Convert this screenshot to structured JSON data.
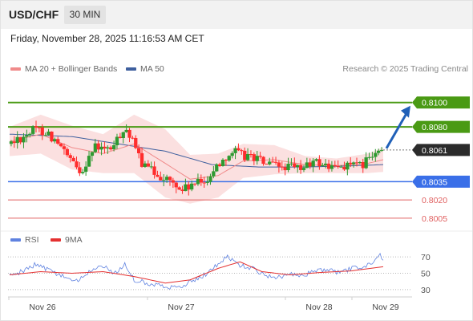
{
  "header": {
    "symbol": "USD/CHF",
    "timeframe": "30 MIN",
    "datetime": "Friday, November 28, 2025 11:16:53 AM CET"
  },
  "legend": {
    "ma20": "MA 20 + Bollinger Bands",
    "ma50": "MA 50",
    "credit": "Research © 2025 Trading Central"
  },
  "rsi_legend": {
    "rsi": "RSI",
    "ma": "9MA"
  },
  "colors": {
    "up": "#2f9a31",
    "down": "#ff2e2e",
    "green_level": "#4a9a14",
    "blue_level": "#3a6fe8",
    "red_level": "#e06060",
    "ma20": "#f08a8a",
    "ma50": "#3e5f9e",
    "band_fill": "#fbe0e0",
    "rsi": "#5f82e0",
    "rsi_ma": "#e43030",
    "arrow": "#2060b8",
    "current": "#2b2b2b"
  },
  "chart_data": [
    {
      "type": "candlestick",
      "title": "USD/CHF",
      "timeframe": "30 MIN",
      "ylim": [
        0.7997,
        0.8113
      ],
      "x_ticks": [
        "Nov 26",
        "Nov 27",
        "Nov 28",
        "Nov 29"
      ],
      "levels": [
        {
          "label": "0.8100",
          "value": 0.81,
          "kind": "resistance"
        },
        {
          "label": "0.8080",
          "value": 0.808,
          "kind": "resistance"
        },
        {
          "label": "0.8061",
          "value": 0.8061,
          "kind": "current"
        },
        {
          "label": "0.8035",
          "value": 0.8035,
          "kind": "pivot"
        },
        {
          "label": "0.8020",
          "value": 0.802,
          "kind": "support"
        },
        {
          "label": "0.8005",
          "value": 0.8005,
          "kind": "support"
        }
      ],
      "series": [
        {
          "name": "MA 20 + Bollinger Bands"
        },
        {
          "name": "MA 50"
        }
      ],
      "price_path": [
        [
          0,
          0.8066
        ],
        [
          8,
          0.8072
        ],
        [
          16,
          0.8078
        ],
        [
          24,
          0.8076
        ],
        [
          32,
          0.8064
        ],
        [
          40,
          0.805
        ],
        [
          46,
          0.8043
        ],
        [
          52,
          0.8059
        ],
        [
          56,
          0.8064
        ],
        [
          62,
          0.806
        ],
        [
          68,
          0.8066
        ],
        [
          74,
          0.8081
        ],
        [
          80,
          0.8064
        ],
        [
          86,
          0.8048
        ],
        [
          94,
          0.8042
        ],
        [
          102,
          0.8036
        ],
        [
          110,
          0.8028
        ],
        [
          118,
          0.8032
        ],
        [
          126,
          0.8036
        ],
        [
          132,
          0.8046
        ],
        [
          138,
          0.8055
        ],
        [
          144,
          0.806
        ],
        [
          150,
          0.8056
        ],
        [
          156,
          0.8056
        ],
        [
          164,
          0.805
        ],
        [
          172,
          0.8047
        ],
        [
          180,
          0.8047
        ],
        [
          186,
          0.8045
        ],
        [
          190,
          0.8048
        ],
        [
          196,
          0.8051
        ],
        [
          202,
          0.8049
        ],
        [
          208,
          0.8046
        ],
        [
          214,
          0.8048
        ],
        [
          220,
          0.805
        ],
        [
          224,
          0.8046
        ],
        [
          230,
          0.8053
        ],
        [
          236,
          0.8058
        ],
        [
          240,
          0.8063
        ]
      ],
      "ma20_path": [
        [
          0,
          0.8068
        ],
        [
          20,
          0.8074
        ],
        [
          40,
          0.8063
        ],
        [
          60,
          0.8058
        ],
        [
          80,
          0.8066
        ],
        [
          100,
          0.805
        ],
        [
          116,
          0.8037
        ],
        [
          134,
          0.804
        ],
        [
          150,
          0.8052
        ],
        [
          170,
          0.8053
        ],
        [
          190,
          0.8049
        ],
        [
          210,
          0.8048
        ],
        [
          230,
          0.805
        ],
        [
          240,
          0.8053
        ]
      ],
      "band_width_path": [
        [
          0,
          0.0012
        ],
        [
          20,
          0.0016
        ],
        [
          40,
          0.0018
        ],
        [
          60,
          0.0016
        ],
        [
          80,
          0.0024
        ],
        [
          100,
          0.0028
        ],
        [
          116,
          0.002
        ],
        [
          134,
          0.0018
        ],
        [
          150,
          0.0014
        ],
        [
          170,
          0.0012
        ],
        [
          190,
          0.0007
        ],
        [
          210,
          0.0006
        ],
        [
          230,
          0.0008
        ],
        [
          240,
          0.001
        ]
      ],
      "ma50_path": [
        [
          0,
          0.8074
        ],
        [
          40,
          0.8072
        ],
        [
          70,
          0.8066
        ],
        [
          100,
          0.806
        ],
        [
          130,
          0.8049
        ],
        [
          160,
          0.8047
        ],
        [
          190,
          0.8047
        ],
        [
          220,
          0.8048
        ],
        [
          240,
          0.8049
        ]
      ],
      "forecast": {
        "from": 0.8061,
        "to": 0.81
      }
    },
    {
      "type": "line",
      "title": "RSI",
      "ylim": [
        23,
        78
      ],
      "y_ticks": [
        70,
        50,
        30
      ],
      "series": [
        {
          "name": "RSI",
          "path": [
            [
              0,
              48
            ],
            [
              8,
              52
            ],
            [
              16,
              60
            ],
            [
              24,
              55
            ],
            [
              34,
              46
            ],
            [
              44,
              40
            ],
            [
              52,
              54
            ],
            [
              60,
              58
            ],
            [
              68,
              50
            ],
            [
              74,
              62
            ],
            [
              80,
              42
            ],
            [
              88,
              38
            ],
            [
              98,
              35
            ],
            [
              108,
              32
            ],
            [
              118,
              42
            ],
            [
              126,
              48
            ],
            [
              134,
              62
            ],
            [
              140,
              70
            ],
            [
              148,
              60
            ],
            [
              156,
              56
            ],
            [
              164,
              48
            ],
            [
              172,
              44
            ],
            [
              180,
              50
            ],
            [
              188,
              48
            ],
            [
              196,
              52
            ],
            [
              204,
              55
            ],
            [
              212,
              50
            ],
            [
              220,
              56
            ],
            [
              228,
              58
            ],
            [
              234,
              64
            ],
            [
              238,
              72
            ],
            [
              240,
              68
            ]
          ]
        },
        {
          "name": "9MA",
          "path": [
            [
              0,
              48
            ],
            [
              20,
              52
            ],
            [
              40,
              50
            ],
            [
              60,
              52
            ],
            [
              80,
              46
            ],
            [
              100,
              38
            ],
            [
              116,
              42
            ],
            [
              134,
              56
            ],
            [
              148,
              64
            ],
            [
              162,
              52
            ],
            [
              180,
              48
            ],
            [
              200,
              51
            ],
            [
              220,
              53
            ],
            [
              240,
              58
            ]
          ]
        }
      ]
    }
  ]
}
